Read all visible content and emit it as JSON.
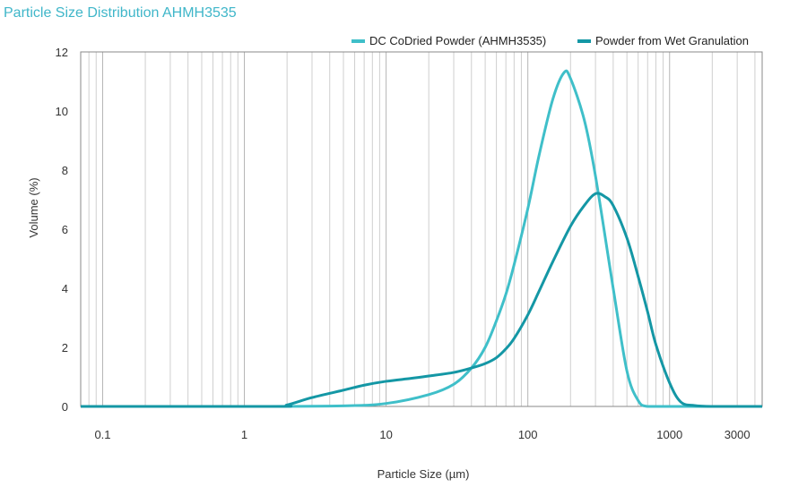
{
  "chart_data": {
    "type": "line",
    "title": "Particle Size Distribution AHMH3535",
    "xlabel": "Particle Size (µm)",
    "ylabel": "Volume (%)",
    "xscale": "log",
    "xlim": [
      0.07,
      4500
    ],
    "ylim": [
      0,
      12
    ],
    "x_ticks": [
      {
        "value": 0.1,
        "label": "0.1"
      },
      {
        "value": 1,
        "label": "1"
      },
      {
        "value": 10,
        "label": "10"
      },
      {
        "value": 100,
        "label": "100"
      },
      {
        "value": 1000,
        "label": "1000"
      },
      {
        "value": 3000,
        "label": "3000"
      }
    ],
    "y_ticks": [
      0,
      2,
      4,
      6,
      8,
      10,
      12
    ],
    "grid": "vertical log grid",
    "legend_position": "top-right",
    "series": [
      {
        "name": "DC CoDried Powder (AHMH3535)",
        "color": "#3fbfc9",
        "x": [
          0.07,
          1,
          5,
          10,
          20,
          30,
          40,
          50,
          60,
          70,
          80,
          100,
          120,
          150,
          180,
          200,
          250,
          300,
          400,
          500,
          600,
          700,
          1000,
          4500
        ],
        "y": [
          0,
          0,
          0.02,
          0.1,
          0.4,
          0.75,
          1.3,
          2.0,
          2.9,
          3.8,
          4.8,
          6.7,
          8.5,
          10.4,
          11.3,
          11.1,
          9.7,
          7.8,
          4.0,
          1.2,
          0.2,
          0.0,
          0,
          0
        ]
      },
      {
        "name": "Powder from Wet Granulation",
        "color": "#1497a5",
        "x": [
          0.07,
          1.6,
          2,
          3,
          5,
          7,
          10,
          15,
          20,
          30,
          40,
          50,
          60,
          70,
          80,
          100,
          120,
          150,
          200,
          250,
          300,
          350,
          400,
          500,
          600,
          700,
          800,
          1000,
          1200,
          1500,
          2000,
          4500
        ],
        "y": [
          0,
          0,
          0.05,
          0.3,
          0.55,
          0.72,
          0.85,
          0.95,
          1.03,
          1.15,
          1.3,
          1.45,
          1.65,
          1.95,
          2.3,
          3.1,
          3.9,
          4.9,
          6.1,
          6.8,
          7.2,
          7.1,
          6.8,
          5.7,
          4.4,
          3.2,
          2.1,
          0.8,
          0.15,
          0.03,
          0,
          0
        ]
      }
    ]
  }
}
